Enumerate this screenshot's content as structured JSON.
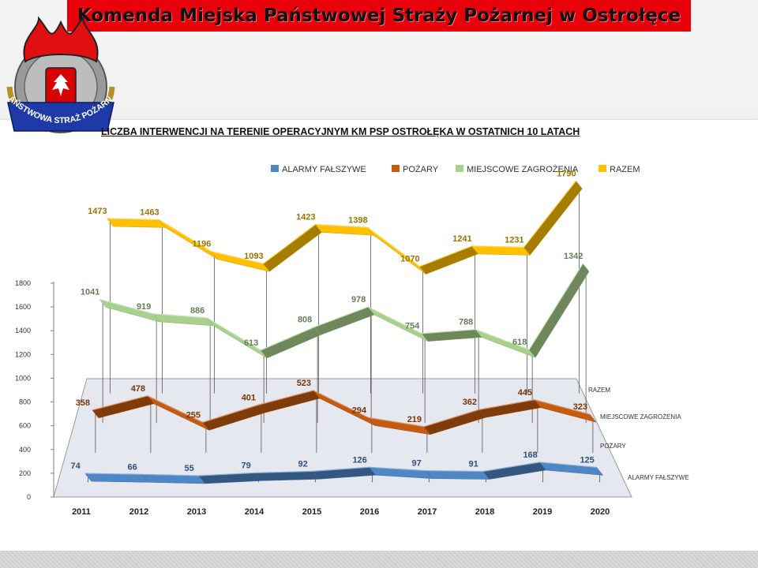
{
  "header": {
    "title": "Komenda Miejska Państwowej Straży Pożarnej w Ostrołęce",
    "logo_text": "PAŃSTWOWA STRAŻ POŻARNA"
  },
  "chart_data": {
    "type": "line",
    "title": "LICZBA INTERWENCJI NA TERENIE OPERACYJNYM KM PSP OSTROŁĘKA W OSTATNICH 10 LATACH",
    "xlabel": "",
    "ylabel": "",
    "categories": [
      "2011",
      "2012",
      "2013",
      "2014",
      "2015",
      "2016",
      "2017",
      "2018",
      "2019",
      "2020"
    ],
    "ylim": [
      0,
      1800
    ],
    "yticks": [
      "0",
      "200",
      "400",
      "600",
      "800",
      "1000",
      "1200",
      "1400",
      "1600",
      "1800"
    ],
    "legend_position": "top",
    "three_d": true,
    "series": [
      {
        "name": "ALARMY FAŁSZYWE",
        "color": "#4f86c6",
        "values": [
          74,
          66,
          55,
          79,
          92,
          126,
          97,
          91,
          168,
          125
        ]
      },
      {
        "name": "POŻARY",
        "color": "#c55a11",
        "values": [
          358,
          478,
          255,
          401,
          523,
          294,
          219,
          362,
          445,
          323
        ]
      },
      {
        "name": "MIEJSCOWE ZAGROŻENIA",
        "color": "#a9d18e",
        "values": [
          1041,
          919,
          886,
          613,
          808,
          978,
          754,
          788,
          618,
          1342
        ]
      },
      {
        "name": "RAZEM",
        "color": "#ffc000",
        "values": [
          1473,
          1463,
          1196,
          1093,
          1423,
          1398,
          1070,
          1241,
          1231,
          1790
        ]
      }
    ],
    "depth_axis_labels": [
      "RAZEM",
      "MIEJSCOWE ZAGROŻENIA",
      "POŻARY",
      "ALARMY FAŁSZYWE"
    ]
  }
}
